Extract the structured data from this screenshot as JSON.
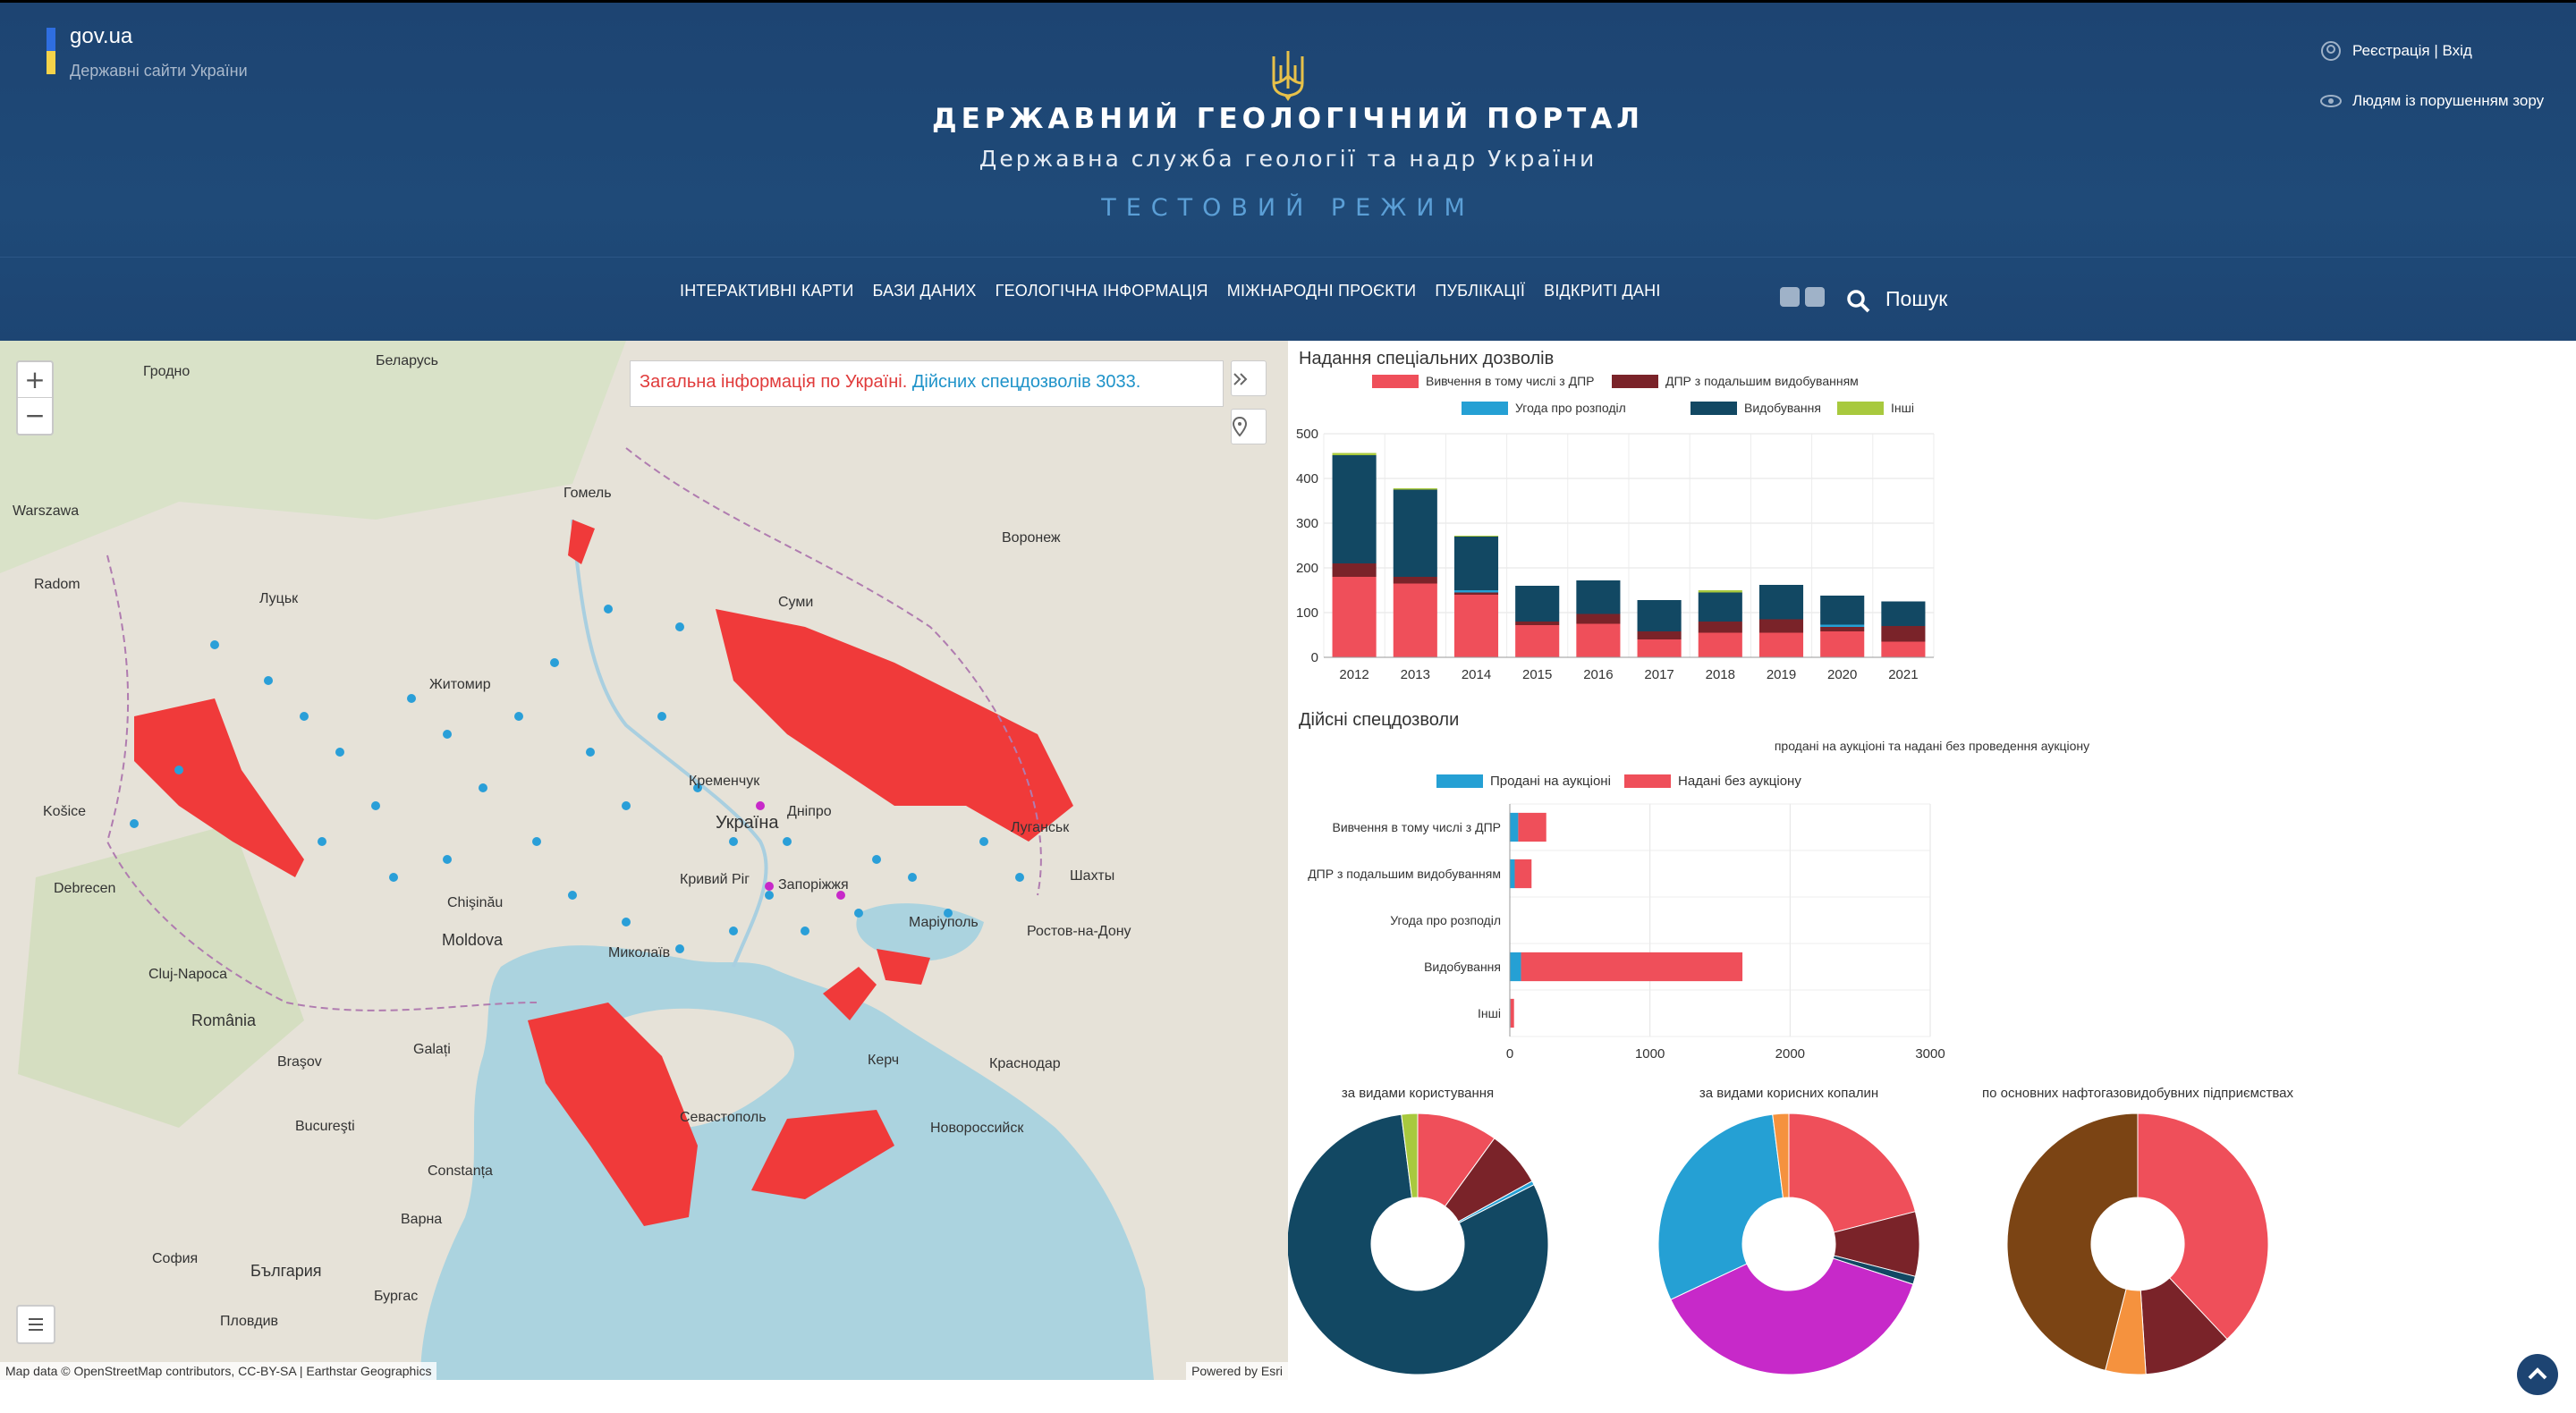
{
  "header": {
    "govua_title": "gov.ua",
    "govua_sub": "Державні сайти України",
    "title": "ДЕРЖАВНИЙ ГЕОЛОГІЧНИЙ ПОРТАЛ",
    "subtitle": "Державна служба геології та надр України",
    "mode": "ТЕСТОВИЙ РЕЖИМ",
    "login": "Реєстрація | Вхід",
    "accessibility": "Людям із порушенням зору",
    "nav": [
      "ІНТЕРАКТИВНІ КАРТИ",
      "БАЗИ ДАНИХ",
      "ГЕОЛОГІЧНА ІНФОРМАЦІЯ",
      "МІЖНАРОДНІ ПРОЄКТИ",
      "ПУБЛІКАЦІЇ",
      "ВІДКРИТІ ДАНІ"
    ],
    "search": "Пошук",
    "colors": {
      "bg": "#1d4472",
      "flag_blue": "#2f6ee0",
      "flag_yellow": "#f5d34a",
      "mode": "#5b9fd6"
    }
  },
  "map": {
    "info_red": "Загальна інформація по Україні.",
    "info_blue": "Дійсних спецдозволів 3033.",
    "zoom_in": "+",
    "zoom_out": "−",
    "attribution_left": "Map data © OpenStreetMap contributors, CC-BY-SA | Earthstar Geographics",
    "attribution_right": "Powered by Esri",
    "cities": [
      {
        "name": "Гродно"
      },
      {
        "name": "Беларусь"
      },
      {
        "name": "Warszawa"
      },
      {
        "name": "Гомель"
      },
      {
        "name": "Луцьк"
      },
      {
        "name": "Житомир"
      },
      {
        "name": "Суми"
      },
      {
        "name": "Воронеж"
      },
      {
        "name": "Кременчук"
      },
      {
        "name": "Дніпро"
      },
      {
        "name": "Луганськ"
      },
      {
        "name": "Україна"
      },
      {
        "name": "Кривий Ріг"
      },
      {
        "name": "Запоріжжя"
      },
      {
        "name": "Маріуполь"
      },
      {
        "name": "Ростов-на-Дону"
      },
      {
        "name": "Миколаїв"
      },
      {
        "name": "Moldova"
      },
      {
        "name": "România"
      },
      {
        "name": "Cluj-Napoca"
      },
      {
        "name": "Bucureşti"
      },
      {
        "name": "Constanța"
      },
      {
        "name": "Севастополь"
      },
      {
        "name": "Керч"
      },
      {
        "name": "Варна"
      },
      {
        "name": "София"
      },
      {
        "name": "България"
      },
      {
        "name": "Бургас"
      },
      {
        "name": "Пловдив"
      },
      {
        "name": "Debrecen"
      },
      {
        "name": "Košice"
      },
      {
        "name": "Radom"
      },
      {
        "name": "Шахты"
      },
      {
        "name": "Новороссийск"
      },
      {
        "name": "Краснодар"
      },
      {
        "name": "Chişinău"
      },
      {
        "name": "Galați"
      },
      {
        "name": "Braşov"
      }
    ]
  },
  "chart_data": [
    {
      "type": "bar",
      "stacked": true,
      "title": "Надання спеціальних дозволів",
      "categories": [
        "2012",
        "2013",
        "2014",
        "2015",
        "2016",
        "2017",
        "2018",
        "2019",
        "2020",
        "2021"
      ],
      "ylim": [
        0,
        500
      ],
      "yticks": [
        0,
        100,
        200,
        300,
        400,
        500
      ],
      "grid": true,
      "legend_position": "top",
      "series": [
        {
          "name": "Вивчення в тому числі з ДПР",
          "color": "#ef4f5a",
          "values": [
            180,
            165,
            140,
            72,
            75,
            40,
            55,
            55,
            58,
            35
          ]
        },
        {
          "name": "ДПР з подальшим видобуванням",
          "color": "#7a2329",
          "values": [
            30,
            15,
            5,
            8,
            22,
            18,
            25,
            30,
            10,
            35
          ]
        },
        {
          "name": "Угода про розподіл",
          "color": "#25a0d4",
          "values": [
            0,
            0,
            5,
            0,
            0,
            0,
            0,
            0,
            5,
            0
          ]
        },
        {
          "name": "Видобування",
          "color": "#124863",
          "values": [
            242,
            195,
            120,
            80,
            75,
            70,
            65,
            77,
            65,
            55
          ]
        },
        {
          "name": "Інші",
          "color": "#a8c93e",
          "values": [
            5,
            3,
            2,
            0,
            0,
            0,
            5,
            0,
            0,
            0
          ]
        }
      ]
    },
    {
      "type": "bar",
      "orientation": "horizontal",
      "stacked": true,
      "title": "Дійсні спецдозволи",
      "subtitle": "продані на аукціоні та надані без проведення аукціону",
      "categories": [
        "Вивчення в тому числі з ДПР",
        "ДПР з подальшим видобуванням",
        "Угода про розподіл",
        "Видобування",
        "Інші"
      ],
      "xlim": [
        0,
        3000
      ],
      "xticks": [
        0,
        1000,
        2000,
        3000
      ],
      "grid": true,
      "legend_position": "top",
      "series": [
        {
          "name": "Продані на аукціоні",
          "color": "#25a0d4",
          "values": [
            60,
            35,
            0,
            80,
            5
          ]
        },
        {
          "name": "Надані без аукціону",
          "color": "#ef4f5a",
          "values": [
            200,
            120,
            0,
            1580,
            25
          ]
        }
      ]
    },
    {
      "type": "pie",
      "donut": true,
      "title": "за видами користування",
      "slices": [
        {
          "value": 10,
          "color": "#ef4f5a"
        },
        {
          "value": 7,
          "color": "#7a2329"
        },
        {
          "value": 0.5,
          "color": "#25a0d4"
        },
        {
          "value": 80.5,
          "color": "#124863"
        },
        {
          "value": 2,
          "color": "#a8c93e"
        }
      ]
    },
    {
      "type": "pie",
      "donut": true,
      "title": "за видами корисних копалин",
      "slices": [
        {
          "value": 21,
          "color": "#ef4f5a"
        },
        {
          "value": 8,
          "color": "#7a2329"
        },
        {
          "value": 1,
          "color": "#124863"
        },
        {
          "value": 38,
          "color": "#c729c9"
        },
        {
          "value": 30,
          "color": "#25a0d4"
        },
        {
          "value": 2,
          "color": "#f5923e"
        }
      ]
    },
    {
      "type": "pie",
      "donut": true,
      "title": "по основних нафтогазовидобувних підприємствах",
      "slices": [
        {
          "value": 38,
          "color": "#ef4f5a"
        },
        {
          "value": 11,
          "color": "#7a2329"
        },
        {
          "value": 5,
          "color": "#f5923e"
        },
        {
          "value": 46,
          "color": "#7b4414"
        }
      ]
    }
  ]
}
